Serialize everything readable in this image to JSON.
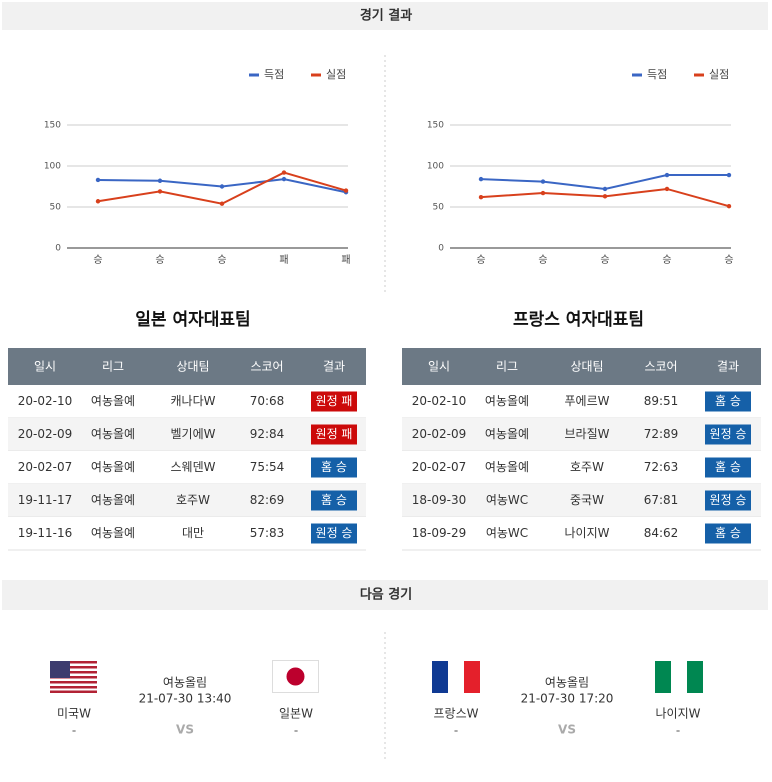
{
  "header": {
    "title": "경기 결과"
  },
  "chart_data": [
    {
      "type": "line",
      "categories": [
        "승",
        "승",
        "승",
        "패",
        "패"
      ],
      "series": [
        {
          "name": "득점",
          "color": "#3a66c4",
          "values": [
            83,
            82,
            75,
            84,
            68
          ]
        },
        {
          "name": "실점",
          "color": "#d8401c",
          "values": [
            57,
            69,
            54,
            92,
            70
          ]
        }
      ],
      "ylim": [
        0,
        150
      ],
      "yticks": [
        0,
        50,
        100,
        150
      ],
      "grid": true,
      "legend": "top-right"
    },
    {
      "type": "line",
      "categories": [
        "승",
        "승",
        "승",
        "승",
        "승"
      ],
      "series": [
        {
          "name": "득점",
          "color": "#3a66c4",
          "values": [
            84,
            81,
            72,
            89,
            89
          ]
        },
        {
          "name": "실점",
          "color": "#d8401c",
          "values": [
            62,
            67,
            63,
            72,
            51
          ]
        }
      ],
      "ylim": [
        0,
        150
      ],
      "yticks": [
        0,
        50,
        100,
        150
      ],
      "grid": true,
      "legend": "top-right"
    }
  ],
  "tables": [
    {
      "title": "일본 여자대표팀",
      "columns": [
        "일시",
        "리그",
        "상대팀",
        "스코어",
        "결과"
      ],
      "rows": [
        [
          "20-02-10",
          "여농올예",
          "캐나다W",
          "70:68",
          "원정 패"
        ],
        [
          "20-02-09",
          "여농올예",
          "벨기에W",
          "92:84",
          "원정 패"
        ],
        [
          "20-02-07",
          "여농올예",
          "스웨덴W",
          "75:54",
          "홈 승"
        ],
        [
          "19-11-17",
          "여농올예",
          "호주W",
          "82:69",
          "홈 승"
        ],
        [
          "19-11-16",
          "여농올예",
          "대만",
          "57:83",
          "원정 승"
        ]
      ],
      "result_colors": [
        "#cc0a0a",
        "#cc0a0a",
        "#1560a8",
        "#1560a8",
        "#1560a8"
      ]
    },
    {
      "title": "프랑스 여자대표팀",
      "columns": [
        "일시",
        "리그",
        "상대팀",
        "스코어",
        "결과"
      ],
      "rows": [
        [
          "20-02-10",
          "여농올예",
          "푸에르W",
          "89:51",
          "홈 승"
        ],
        [
          "20-02-09",
          "여농올예",
          "브라질W",
          "72:89",
          "원정 승"
        ],
        [
          "20-02-07",
          "여농올예",
          "호주W",
          "72:63",
          "홈 승"
        ],
        [
          "18-09-30",
          "여농WC",
          "중국W",
          "67:81",
          "원정 승"
        ],
        [
          "18-09-29",
          "여농WC",
          "나이지W",
          "84:62",
          "홈 승"
        ]
      ],
      "result_colors": [
        "#1560a8",
        "#1560a8",
        "#1560a8",
        "#1560a8",
        "#1560a8"
      ]
    }
  ],
  "next": {
    "title": "다음 경기",
    "matches": [
      {
        "home": "미국W",
        "away": "일본W",
        "league": "여농올림",
        "datetime": "21-07-30 13:40",
        "vs": "VS",
        "home_score": "-",
        "away_score": "-"
      },
      {
        "home": "프랑스W",
        "away": "나이지W",
        "league": "여농올림",
        "datetime": "21-07-30 17:20",
        "vs": "VS",
        "home_score": "-",
        "away_score": "-"
      }
    ]
  }
}
